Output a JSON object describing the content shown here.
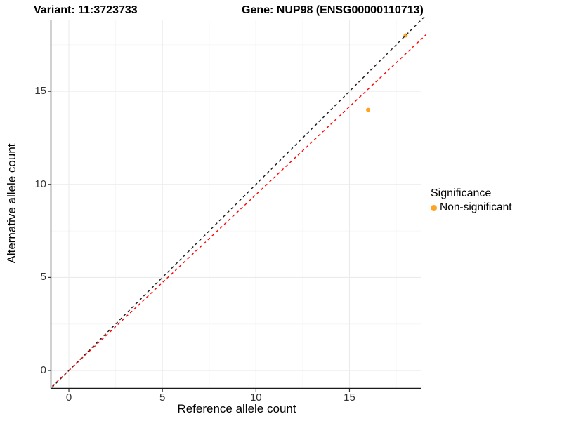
{
  "chart_data": {
    "type": "scatter",
    "variant_title": "Variant: 11:3723733",
    "gene_title": "Gene: NUP98 (ENSG00000110713)",
    "xlabel": "Reference allele count",
    "ylabel": "Alternative allele count",
    "xlim": [
      -0.94,
      18.85
    ],
    "ylim": [
      -0.94,
      18.85
    ],
    "x_ticks": [
      0,
      5,
      10,
      15
    ],
    "y_ticks": [
      0,
      5,
      10,
      15
    ],
    "x_minor_ticks": [
      2.5,
      7.5,
      12.5,
      17.5
    ],
    "y_minor_ticks": [
      2.5,
      7.5,
      12.5,
      17.5
    ],
    "grid": true,
    "legend_position": "right",
    "points": [
      {
        "x": 16,
        "y": 14,
        "series": "Non-significant"
      },
      {
        "x": 18,
        "y": 18,
        "series": "Non-significant"
      }
    ],
    "lines": [
      {
        "name": "identity-line",
        "slope": 1.0,
        "intercept": 0,
        "color": "#1A1A1A",
        "dash": "4,4"
      },
      {
        "name": "fitted-ratio-line",
        "slope": 0.945,
        "intercept": 0,
        "color": "#FF0000",
        "dash": "4,4"
      }
    ],
    "legend": {
      "title": "Significance",
      "items": [
        {
          "label": "Non-significant",
          "color": "#FFA421"
        }
      ]
    },
    "style": {
      "background": "#FFFFFF",
      "major_grid": "#EBEBEB",
      "minor_grid": "#F6F6F6",
      "axis_line": "#1A1A1A",
      "tick_color": "#333333",
      "point_radius": 3
    }
  }
}
